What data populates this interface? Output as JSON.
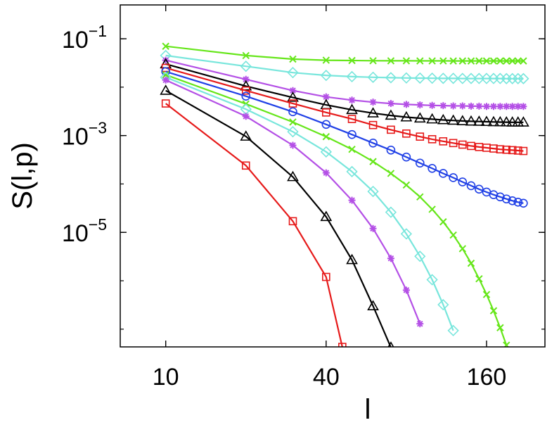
{
  "chart_data": {
    "type": "line",
    "title": "",
    "xlabel": "l",
    "ylabel": "S(l,p)",
    "xscale": "log",
    "yscale": "log",
    "xlim": [
      6.75,
      265
    ],
    "ylim": [
      4.3e-08,
      0.5
    ],
    "xticks": [
      {
        "value": 10,
        "label": "10"
      },
      {
        "value": 40,
        "label": "40"
      },
      {
        "value": 160,
        "label": "160"
      }
    ],
    "yticks": [
      {
        "value": 0.1,
        "base": "10",
        "exp": "−1"
      },
      {
        "value": 0.001,
        "base": "10",
        "exp": "−3"
      },
      {
        "value": 1e-05,
        "base": "10",
        "exp": "−5"
      }
    ],
    "grid": false,
    "legend": "none",
    "series": [
      {
        "name": "green-x-flat",
        "color": "#66e61a",
        "marker": "x",
        "points": [
          [
            10,
            0.07
          ],
          [
            20,
            0.045
          ],
          [
            30,
            0.038
          ],
          [
            40,
            0.036
          ],
          [
            50,
            0.0355
          ],
          [
            60,
            0.0352
          ],
          [
            70,
            0.035
          ],
          [
            80,
            0.035
          ],
          [
            90,
            0.0349
          ],
          [
            100,
            0.0349
          ],
          [
            110,
            0.0349
          ],
          [
            120,
            0.0348
          ],
          [
            130,
            0.0348
          ],
          [
            140,
            0.0348
          ],
          [
            150,
            0.0348
          ],
          [
            160,
            0.0348
          ],
          [
            170,
            0.0348
          ],
          [
            180,
            0.0348
          ],
          [
            190,
            0.0348
          ],
          [
            200,
            0.0348
          ],
          [
            210,
            0.0348
          ],
          [
            220,
            0.0348
          ]
        ]
      },
      {
        "name": "cyan-diamond-flat",
        "color": "#78e6dc",
        "marker": "diamond",
        "points": [
          [
            10,
            0.045
          ],
          [
            20,
            0.027
          ],
          [
            30,
            0.02
          ],
          [
            40,
            0.0175
          ],
          [
            50,
            0.0165
          ],
          [
            60,
            0.016
          ],
          [
            70,
            0.0157
          ],
          [
            80,
            0.0155
          ],
          [
            90,
            0.0154
          ],
          [
            100,
            0.0153
          ],
          [
            110,
            0.0152
          ],
          [
            120,
            0.0152
          ],
          [
            130,
            0.0151
          ],
          [
            140,
            0.0151
          ],
          [
            150,
            0.0151
          ],
          [
            160,
            0.0151
          ],
          [
            170,
            0.0151
          ],
          [
            180,
            0.0151
          ],
          [
            190,
            0.015
          ],
          [
            200,
            0.015
          ],
          [
            210,
            0.015
          ],
          [
            220,
            0.015
          ]
        ]
      },
      {
        "name": "magenta-star-flat",
        "color": "#b450e6",
        "marker": "star",
        "points": [
          [
            10,
            0.036
          ],
          [
            20,
            0.0145
          ],
          [
            30,
            0.0085
          ],
          [
            40,
            0.0063
          ],
          [
            50,
            0.0054
          ],
          [
            60,
            0.0049
          ],
          [
            70,
            0.0046
          ],
          [
            80,
            0.0044
          ],
          [
            90,
            0.0043
          ],
          [
            100,
            0.0042
          ],
          [
            110,
            0.00415
          ],
          [
            120,
            0.0041
          ],
          [
            130,
            0.0041
          ],
          [
            140,
            0.00405
          ],
          [
            150,
            0.00405
          ],
          [
            160,
            0.004
          ],
          [
            170,
            0.004
          ],
          [
            180,
            0.004
          ],
          [
            190,
            0.004
          ],
          [
            200,
            0.004
          ],
          [
            210,
            0.004
          ],
          [
            220,
            0.004
          ]
        ]
      },
      {
        "name": "black-triangle-flat",
        "color": "#000000",
        "marker": "triangle",
        "points": [
          [
            10,
            0.03
          ],
          [
            20,
            0.0105
          ],
          [
            30,
            0.0061
          ],
          [
            40,
            0.0043
          ],
          [
            50,
            0.0034
          ],
          [
            60,
            0.0029
          ],
          [
            70,
            0.0026
          ],
          [
            80,
            0.0024
          ],
          [
            90,
            0.00228
          ],
          [
            100,
            0.00218
          ],
          [
            110,
            0.0021
          ],
          [
            120,
            0.00205
          ],
          [
            130,
            0.002
          ],
          [
            140,
            0.00197
          ],
          [
            150,
            0.00195
          ],
          [
            160,
            0.00193
          ],
          [
            170,
            0.00191
          ],
          [
            180,
            0.0019
          ],
          [
            190,
            0.00189
          ],
          [
            200,
            0.00188
          ],
          [
            210,
            0.00188
          ],
          [
            220,
            0.00188
          ]
        ]
      },
      {
        "name": "red-square-flat",
        "color": "#e61a1a",
        "marker": "square",
        "points": [
          [
            10,
            0.025
          ],
          [
            20,
            0.0085
          ],
          [
            30,
            0.0046
          ],
          [
            40,
            0.003
          ],
          [
            50,
            0.0022
          ],
          [
            60,
            0.00165
          ],
          [
            70,
            0.00132
          ],
          [
            80,
            0.0011
          ],
          [
            90,
            0.00095
          ],
          [
            100,
            0.00084
          ],
          [
            110,
            0.00076
          ],
          [
            120,
            0.0007
          ],
          [
            130,
            0.00065
          ],
          [
            140,
            0.00061
          ],
          [
            150,
            0.00058
          ],
          [
            160,
            0.00056
          ],
          [
            170,
            0.00054
          ],
          [
            180,
            0.00052
          ],
          [
            190,
            0.00051
          ],
          [
            200,
            0.0005
          ],
          [
            210,
            0.00049
          ],
          [
            220,
            0.00048
          ]
        ]
      },
      {
        "name": "blue-circle-mid",
        "color": "#2040e6",
        "marker": "circle",
        "points": [
          [
            10,
            0.021
          ],
          [
            20,
            0.0065
          ],
          [
            30,
            0.0031
          ],
          [
            40,
            0.0017
          ],
          [
            50,
            0.00105
          ],
          [
            60,
            0.0007
          ],
          [
            70,
            0.0005
          ],
          [
            80,
            0.00036
          ],
          [
            90,
            0.00027
          ],
          [
            100,
            0.00021
          ],
          [
            110,
            0.000165
          ],
          [
            120,
            0.000135
          ],
          [
            130,
            0.00011
          ],
          [
            140,
            9.2e-05
          ],
          [
            150,
            7.8e-05
          ],
          [
            160,
            6.8e-05
          ],
          [
            170,
            6e-05
          ],
          [
            180,
            5.4e-05
          ],
          [
            190,
            4.9e-05
          ],
          [
            200,
            4.5e-05
          ],
          [
            210,
            4.2e-05
          ],
          [
            220,
            4e-05
          ]
        ]
      },
      {
        "name": "green-x-decay",
        "color": "#66e61a",
        "marker": "x",
        "points": [
          [
            10,
            0.018
          ],
          [
            20,
            0.0045
          ],
          [
            30,
            0.0019
          ],
          [
            40,
            0.00095
          ],
          [
            50,
            0.00052
          ],
          [
            60,
            0.00029
          ],
          [
            70,
            0.000165
          ],
          [
            80,
            9.5e-05
          ],
          [
            90,
            5.4e-05
          ],
          [
            100,
            3e-05
          ],
          [
            110,
            1.65e-05
          ],
          [
            120,
            8.8e-06
          ],
          [
            130,
            4.6e-06
          ],
          [
            140,
            2.3e-06
          ],
          [
            150,
            1.1e-06
          ],
          [
            160,
            5.2e-07
          ],
          [
            170,
            2.4e-07
          ],
          [
            180,
            1.07e-07
          ],
          [
            190,
            4.67e-08
          ]
        ]
      },
      {
        "name": "cyan-diamond-decay",
        "color": "#78e6dc",
        "marker": "diamond",
        "points": [
          [
            10,
            0.016
          ],
          [
            20,
            0.0035
          ],
          [
            30,
            0.0012
          ],
          [
            40,
            0.00046
          ],
          [
            50,
            0.00018
          ],
          [
            60,
            7e-05
          ],
          [
            70,
            2.6e-05
          ],
          [
            80,
            9.3e-06
          ],
          [
            90,
            3.2e-06
          ],
          [
            100,
            1.05e-06
          ],
          [
            110,
            3.2e-07
          ],
          [
            120,
            9.35e-08
          ]
        ]
      },
      {
        "name": "magenta-star-decay",
        "color": "#b450e6",
        "marker": "star",
        "points": [
          [
            10,
            0.014
          ],
          [
            20,
            0.0025
          ],
          [
            30,
            0.00063
          ],
          [
            40,
            0.00017
          ],
          [
            50,
            4.6e-05
          ],
          [
            60,
            1.2e-05
          ],
          [
            70,
            2.9e-06
          ],
          [
            80,
            6.4e-07
          ],
          [
            90,
            1.29e-07
          ]
        ]
      },
      {
        "name": "black-triangle-decay",
        "color": "#000000",
        "marker": "triangle",
        "points": [
          [
            10,
            0.0085
          ],
          [
            20,
            0.00096
          ],
          [
            30,
            0.00014
          ],
          [
            40,
            2.1e-05
          ],
          [
            50,
            2.7e-06
          ],
          [
            60,
            3e-07
          ],
          [
            70,
            4.2e-08
          ]
        ]
      },
      {
        "name": "red-square-decay",
        "color": "#e61a1a",
        "marker": "square",
        "points": [
          [
            10,
            0.0046
          ],
          [
            20,
            0.00024
          ],
          [
            30,
            1.7e-05
          ],
          [
            40,
            1.2e-06
          ],
          [
            46,
            4.3e-08
          ]
        ]
      }
    ]
  }
}
